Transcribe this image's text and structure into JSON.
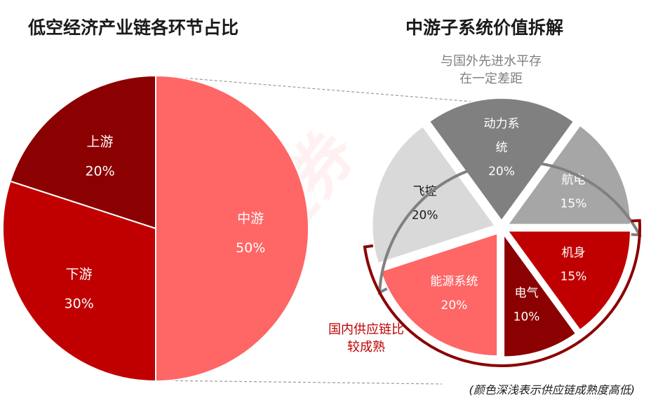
{
  "chart_data": [
    {
      "type": "pie",
      "title": "低空经济产业链各环节占比",
      "slices": [
        {
          "label": "中游",
          "value": 50,
          "value_text": "50%",
          "color": "#ff6666"
        },
        {
          "label": "下游",
          "value": 30,
          "value_text": "30%",
          "color": "#c00000"
        },
        {
          "label": "上游",
          "value": 20,
          "value_text": "20%",
          "color": "#8b0000"
        }
      ]
    },
    {
      "type": "pie",
      "title": "中游子系统价值拆解",
      "slices": [
        {
          "label": "动力系统",
          "label_lines": [
            "动力系",
            "统"
          ],
          "value": 20,
          "value_text": "20%",
          "color": "#808080"
        },
        {
          "label": "航电",
          "label_lines": [
            "航电"
          ],
          "value": 15,
          "value_text": "15%",
          "color": "#a6a6a6"
        },
        {
          "label": "机身",
          "label_lines": [
            "机身"
          ],
          "value": 15,
          "value_text": "15%",
          "color": "#c00000"
        },
        {
          "label": "电气",
          "label_lines": [
            "电气"
          ],
          "value": 10,
          "value_text": "10%",
          "color": "#8b0000"
        },
        {
          "label": "能源系统",
          "label_lines": [
            "能源系统"
          ],
          "value": 20,
          "value_text": "20%",
          "color": "#ff6666"
        },
        {
          "label": "飞控",
          "label_lines": [
            "飞控"
          ],
          "value": 20,
          "value_text": "20%",
          "color": "#d9d9d9"
        }
      ],
      "annotations": {
        "grey": [
          "与国外先进水平存",
          "在一定差距"
        ],
        "red": [
          "国内供应链比",
          "较成熟"
        ]
      }
    }
  ],
  "footnote": "(颜色深浅表示供应链成熟度高低)",
  "watermark": "华福证券"
}
